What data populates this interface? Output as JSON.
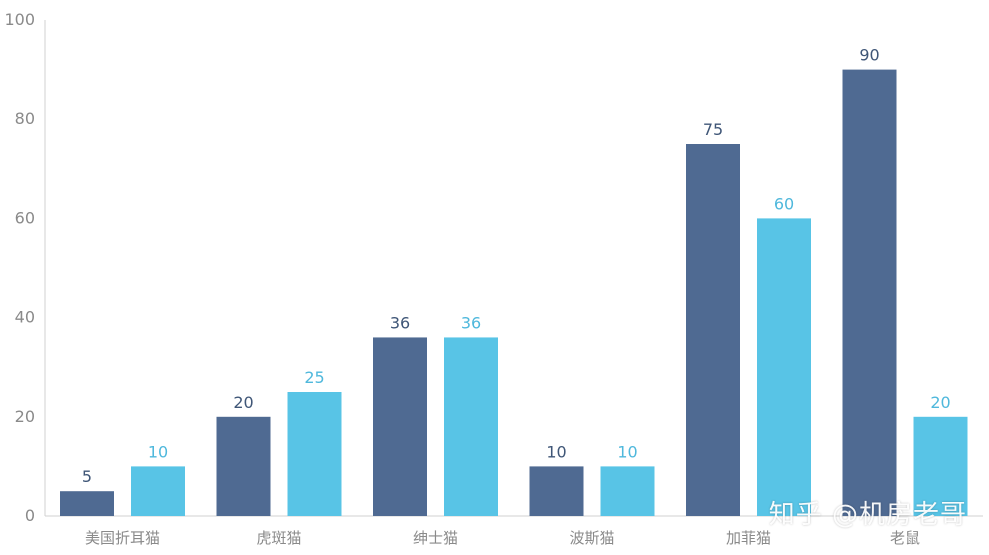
{
  "chart_data": {
    "type": "bar",
    "categories": [
      "美国折耳猫",
      "虎斑猫",
      "绅士猫",
      "波斯猫",
      "加菲猫",
      "老鼠"
    ],
    "series": [
      {
        "values": [
          5,
          20,
          36,
          10,
          75,
          90
        ],
        "color": "#4f6a92",
        "label_color": "#3f5677"
      },
      {
        "values": [
          10,
          25,
          36,
          10,
          60,
          20
        ],
        "color": "#58c4e6",
        "label_color": "#4fb8dc"
      }
    ],
    "yticks": [
      0,
      20,
      40,
      60,
      80,
      100
    ],
    "ylim": [
      0,
      100
    ],
    "grid": false
  },
  "watermark": "知乎 @机房老哥"
}
